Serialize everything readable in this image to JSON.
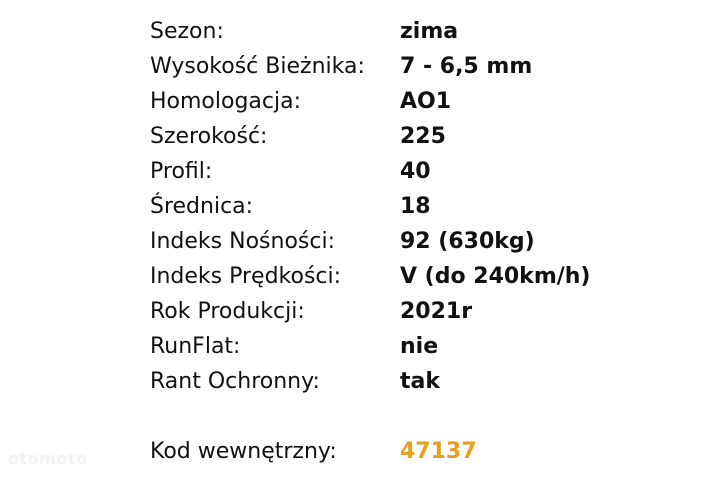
{
  "specs": [
    {
      "label": "Sezon:",
      "value": "zima"
    },
    {
      "label": "Wysokość Bieżnika:",
      "value": "7 - 6,5 mm"
    },
    {
      "label": "Homologacja:",
      "value": "AO1"
    },
    {
      "label": "Szerokość:",
      "value": "225"
    },
    {
      "label": "Profil:",
      "value": "40"
    },
    {
      "label": "Średnica:",
      "value": "18"
    },
    {
      "label": "Indeks Nośności:",
      "value": "92 (630kg)"
    },
    {
      "label": "Indeks Prędkości:",
      "value": "V (do 240km/h)"
    },
    {
      "label": "Rok Produkcji:",
      "value": "2021r"
    },
    {
      "label": "RunFlat:",
      "value": "nie"
    },
    {
      "label": "Rant Ochronny:",
      "value": "tak"
    }
  ],
  "internal_code": {
    "label": "Kod wewnętrzny:",
    "value": "47137"
  },
  "watermark": "otomoto",
  "colors": {
    "accent": "#e8a020",
    "text": "#111111"
  }
}
